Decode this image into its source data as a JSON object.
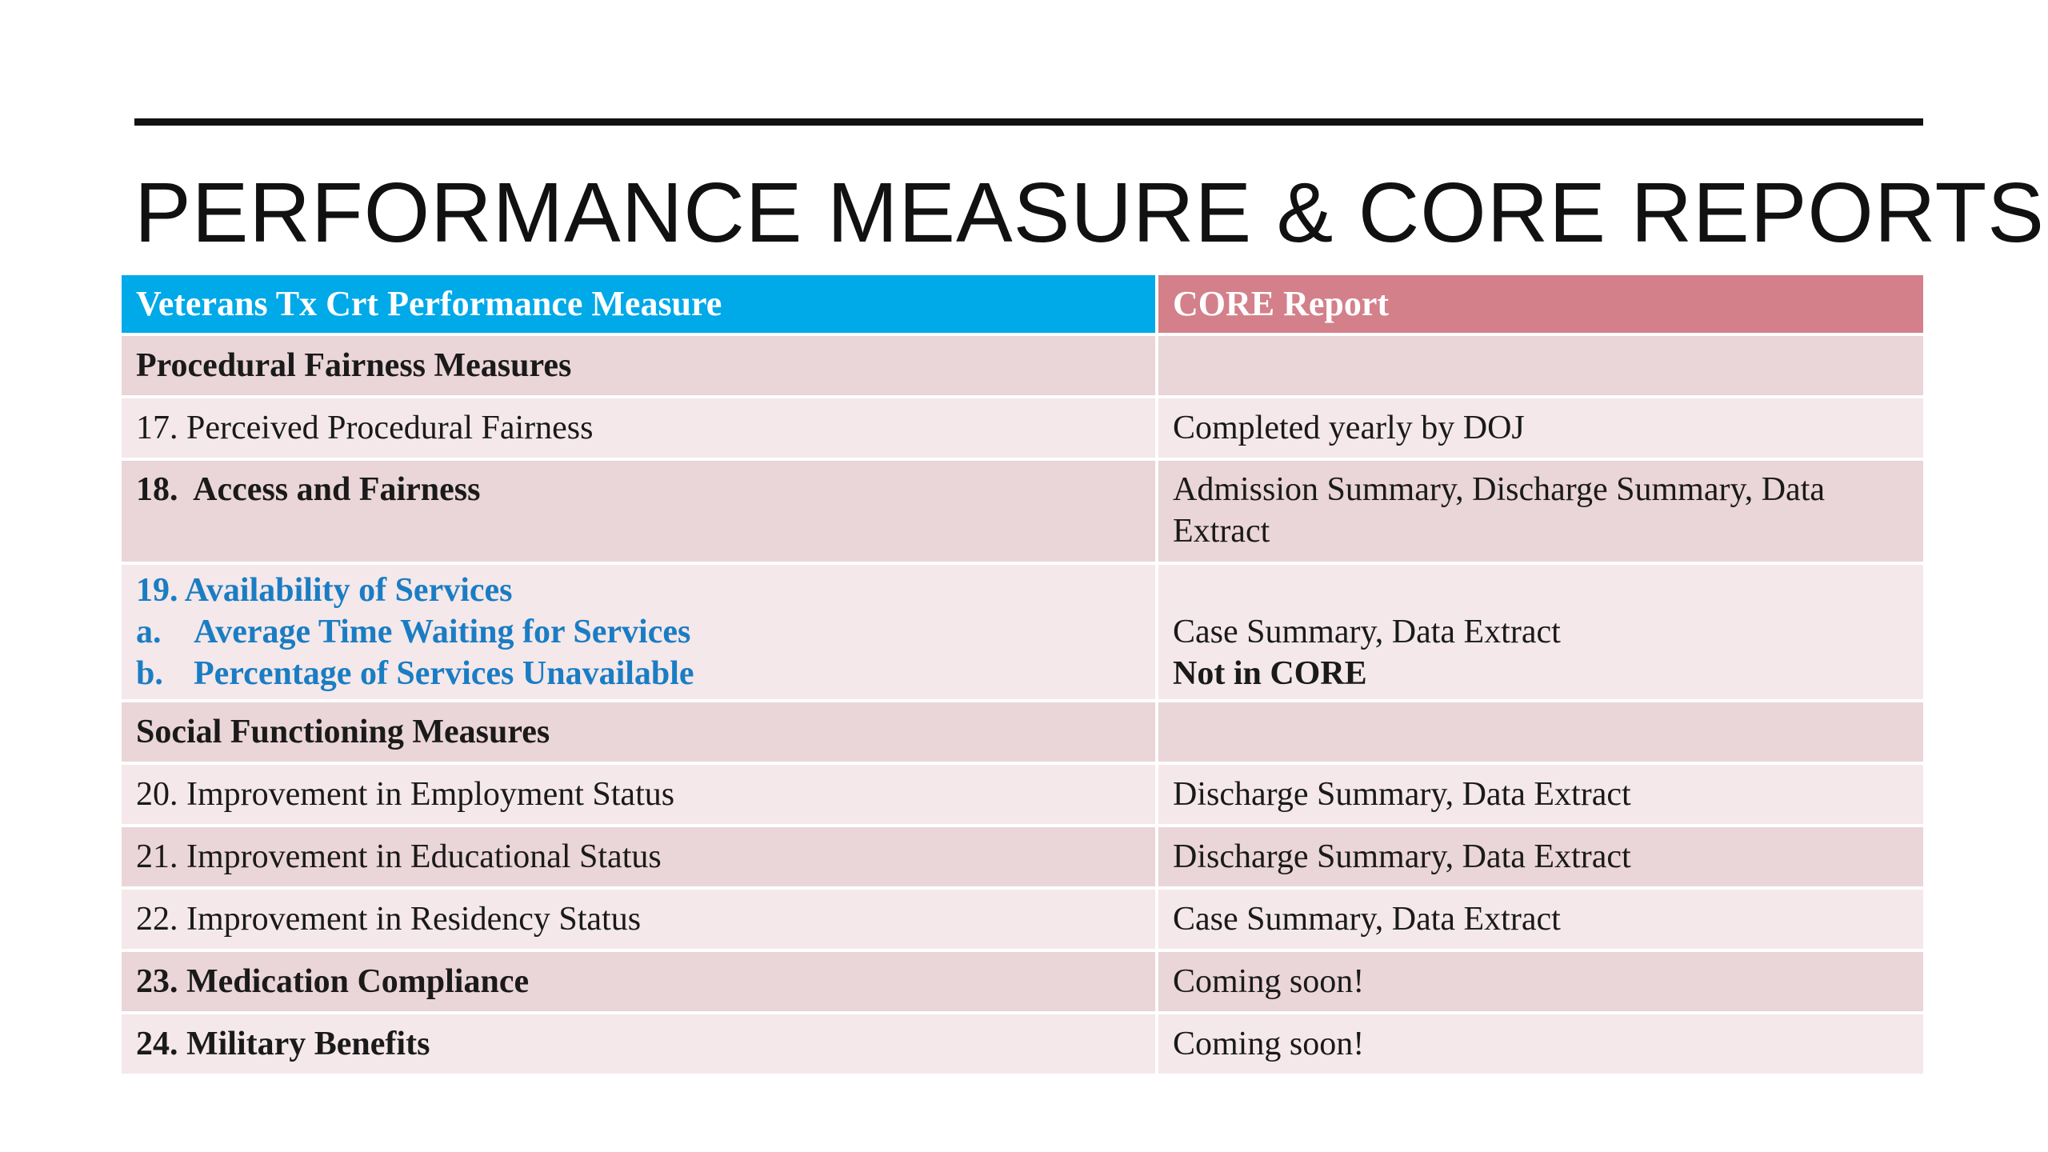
{
  "slide": {
    "title": "PERFORMANCE MEASURE & CORE REPORTS"
  },
  "table": {
    "headers": [
      "Veterans Tx Crt Performance Measure",
      "CORE Report"
    ],
    "colors": {
      "header_left": "#00a9e8",
      "header_right": "#d3808a",
      "row_dark": "#ead5d8",
      "row_light": "#f4e8ea",
      "link_text": "#1a7dc3"
    },
    "rows": [
      {
        "measure": "Procedural Fairness Measures",
        "report": ""
      },
      {
        "measure": "17. Perceived Procedural Fairness",
        "report": "Completed yearly by DOJ"
      },
      {
        "measure": "18.  Access and Fairness",
        "report": "Admission Summary, Discharge Summary, Data Extract"
      },
      {
        "measure": "19. Availability of Services",
        "sub_items": [
          {
            "marker": "a.",
            "label": "Average Time Waiting for Services",
            "report": "Case Summary, Data Extract"
          },
          {
            "marker": "b.",
            "label": "Percentage of Services Unavailable",
            "report": "Not in CORE"
          }
        ]
      },
      {
        "measure": "Social Functioning Measures",
        "report": ""
      },
      {
        "measure": "20. Improvement in Employment Status",
        "report": "Discharge Summary, Data Extract"
      },
      {
        "measure": "21. Improvement in Educational Status",
        "report": "Discharge Summary, Data Extract"
      },
      {
        "measure": "22. Improvement in Residency Status",
        "report": "Case Summary, Data Extract"
      },
      {
        "measure": "23. Medication Compliance",
        "report": "Coming soon!"
      },
      {
        "measure": "24. Military Benefits",
        "report": "Coming soon!"
      }
    ]
  }
}
